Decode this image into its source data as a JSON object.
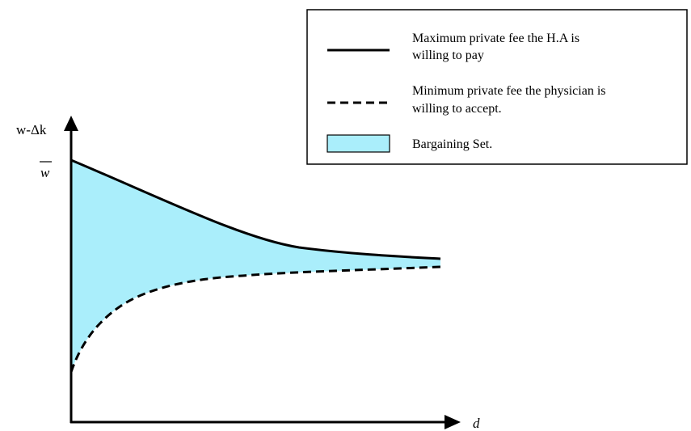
{
  "figure": {
    "y_axis_label": "w-Δk",
    "y_tick_label": "w",
    "x_axis_label": "d"
  },
  "legend": {
    "items": [
      {
        "line1": "Maximum private fee the H.A is",
        "line2": "willing to pay",
        "style": "solid"
      },
      {
        "line1": "Minimum private fee the physician is",
        "line2": "willing to accept.",
        "style": "dashed"
      },
      {
        "line1": "Bargaining Set.",
        "line2": "",
        "style": "fill"
      }
    ]
  },
  "colors": {
    "fill": "#aaeefb",
    "line": "#000000"
  }
}
